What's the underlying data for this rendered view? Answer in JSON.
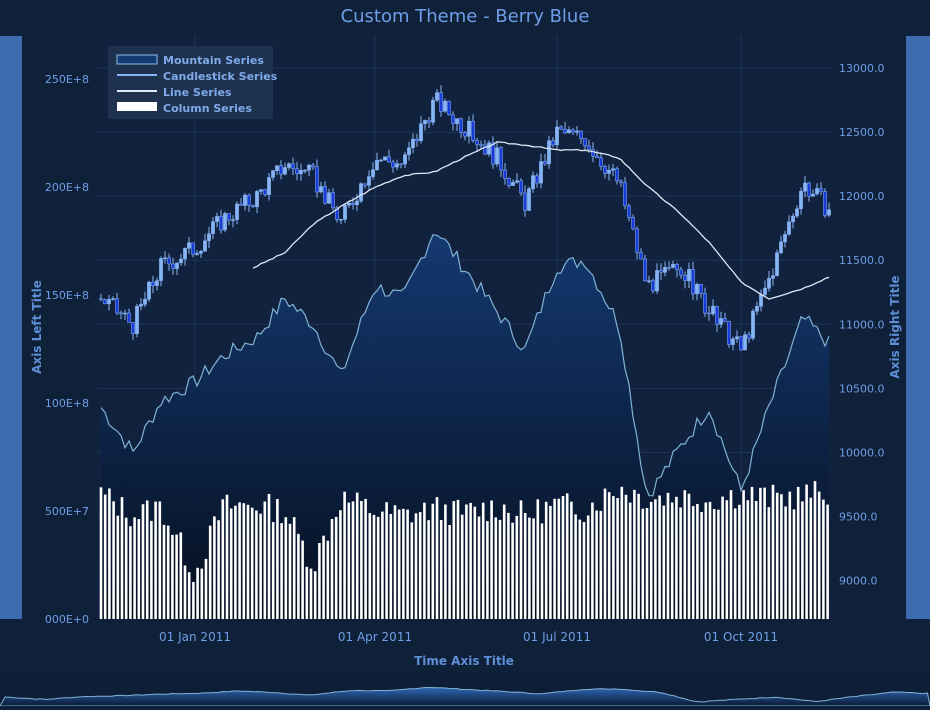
{
  "title": "Custom Theme - Berry Blue",
  "colors": {
    "background": "#0f2039",
    "plot_background": "#10223d",
    "accent": "#6f9fe8",
    "candle_fill": "#1a3bd6",
    "candle_stroke": "#87b4f5",
    "mountain_top": "#143a73",
    "mountain_line": "#7fb3d4",
    "line_series": "#dfe8f5",
    "column": "#ffffff",
    "side_bar": "#3f6bb0"
  },
  "chart_data": {
    "type": "mixed",
    "title": "Custom Theme - Berry Blue",
    "xlabel": "Time Axis Title",
    "ylabel_left": "Axis Left Title",
    "ylabel_right": "Axis Right Title",
    "x_ticks": [
      "01 Jan 2011",
      "01 Apr 2011",
      "01 Jul 2011",
      "01 Oct 2011"
    ],
    "x_range": [
      "2010-11-13",
      "2011-11-15"
    ],
    "y_left_ticks": [
      "000E+0",
      "500E+7",
      "100E+8",
      "150E+8",
      "200E+8",
      "250E+8"
    ],
    "y_left_range": [
      0,
      27000000000
    ],
    "y_right_ticks": [
      "9000.0",
      "9500.0",
      "10000.0",
      "10500.0",
      "11000.0",
      "11500.0",
      "12000.0",
      "12500.0",
      "13000.0"
    ],
    "y_right_range": [
      8700,
      13250
    ],
    "grid": true,
    "legend_position": "top-left",
    "legend": [
      "Mountain Series",
      "Candlestick Series",
      "Line Series",
      "Column Series"
    ],
    "candlestick_close": [
      {
        "date": "2010-11-15",
        "value": 11200
      },
      {
        "date": "2010-12-01",
        "value": 11000
      },
      {
        "date": "2010-12-15",
        "value": 11450
      },
      {
        "date": "2011-01-01",
        "value": 11600
      },
      {
        "date": "2011-01-15",
        "value": 11820
      },
      {
        "date": "2011-02-01",
        "value": 12000
      },
      {
        "date": "2011-02-15",
        "value": 12250
      },
      {
        "date": "2011-03-01",
        "value": 12150
      },
      {
        "date": "2011-03-15",
        "value": 11800
      },
      {
        "date": "2011-04-01",
        "value": 12300
      },
      {
        "date": "2011-04-15",
        "value": 12250
      },
      {
        "date": "2011-05-01",
        "value": 12750
      },
      {
        "date": "2011-05-15",
        "value": 12550
      },
      {
        "date": "2011-06-01",
        "value": 12300
      },
      {
        "date": "2011-06-15",
        "value": 11950
      },
      {
        "date": "2011-07-01",
        "value": 12500
      },
      {
        "date": "2011-07-15",
        "value": 12450
      },
      {
        "date": "2011-08-01",
        "value": 12100
      },
      {
        "date": "2011-08-15",
        "value": 11300
      },
      {
        "date": "2011-09-01",
        "value": 11450
      },
      {
        "date": "2011-09-15",
        "value": 11100
      },
      {
        "date": "2011-10-01",
        "value": 10800
      },
      {
        "date": "2011-10-15",
        "value": 11350
      },
      {
        "date": "2011-11-01",
        "value": 12100
      },
      {
        "date": "2011-11-14",
        "value": 11900
      }
    ],
    "line_series": [
      {
        "date": "2011-01-30",
        "value": 11440
      },
      {
        "date": "2011-02-15",
        "value": 11560
      },
      {
        "date": "2011-03-01",
        "value": 11780
      },
      {
        "date": "2011-03-15",
        "value": 11920
      },
      {
        "date": "2011-04-01",
        "value": 12070
      },
      {
        "date": "2011-04-15",
        "value": 12160
      },
      {
        "date": "2011-05-01",
        "value": 12190
      },
      {
        "date": "2011-05-15",
        "value": 12300
      },
      {
        "date": "2011-06-01",
        "value": 12420
      },
      {
        "date": "2011-06-15",
        "value": 12400
      },
      {
        "date": "2011-07-01",
        "value": 12360
      },
      {
        "date": "2011-07-15",
        "value": 12360
      },
      {
        "date": "2011-08-01",
        "value": 12300
      },
      {
        "date": "2011-08-15",
        "value": 12080
      },
      {
        "date": "2011-09-01",
        "value": 11860
      },
      {
        "date": "2011-09-15",
        "value": 11640
      },
      {
        "date": "2011-10-01",
        "value": 11330
      },
      {
        "date": "2011-10-15",
        "value": 11200
      },
      {
        "date": "2011-11-01",
        "value": 11280
      },
      {
        "date": "2011-11-14",
        "value": 11370
      }
    ],
    "mountain_series": [
      {
        "date": "2010-11-15",
        "value": 10350
      },
      {
        "date": "2010-12-01",
        "value": 10000
      },
      {
        "date": "2010-12-15",
        "value": 10400
      },
      {
        "date": "2011-01-01",
        "value": 10550
      },
      {
        "date": "2011-01-15",
        "value": 10750
      },
      {
        "date": "2011-02-01",
        "value": 10900
      },
      {
        "date": "2011-02-15",
        "value": 11200
      },
      {
        "date": "2011-03-01",
        "value": 11000
      },
      {
        "date": "2011-03-15",
        "value": 10600
      },
      {
        "date": "2011-04-01",
        "value": 11300
      },
      {
        "date": "2011-04-15",
        "value": 11200
      },
      {
        "date": "2011-05-01",
        "value": 11750
      },
      {
        "date": "2011-05-15",
        "value": 11450
      },
      {
        "date": "2011-06-01",
        "value": 11100
      },
      {
        "date": "2011-06-15",
        "value": 10800
      },
      {
        "date": "2011-07-01",
        "value": 11450
      },
      {
        "date": "2011-07-15",
        "value": 11500
      },
      {
        "date": "2011-08-01",
        "value": 11000
      },
      {
        "date": "2011-08-15",
        "value": 9650
      },
      {
        "date": "2011-09-01",
        "value": 10050
      },
      {
        "date": "2011-09-15",
        "value": 10350
      },
      {
        "date": "2011-10-01",
        "value": 9700
      },
      {
        "date": "2011-10-15",
        "value": 10350
      },
      {
        "date": "2011-11-01",
        "value": 11050
      },
      {
        "date": "2011-11-14",
        "value": 10850
      }
    ],
    "column_series": [
      {
        "date": "2010-11-15",
        "value": 5800000000
      },
      {
        "date": "2010-12-01",
        "value": 4800000000
      },
      {
        "date": "2010-12-15",
        "value": 5200000000
      },
      {
        "date": "2011-01-01",
        "value": 2100000000
      },
      {
        "date": "2011-01-15",
        "value": 5200000000
      },
      {
        "date": "2011-02-01",
        "value": 5300000000
      },
      {
        "date": "2011-02-15",
        "value": 5000000000
      },
      {
        "date": "2011-03-01",
        "value": 2500000000
      },
      {
        "date": "2011-03-15",
        "value": 5600000000
      },
      {
        "date": "2011-04-01",
        "value": 5000000000
      },
      {
        "date": "2011-04-15",
        "value": 4800000000
      },
      {
        "date": "2011-05-01",
        "value": 5100000000
      },
      {
        "date": "2011-05-15",
        "value": 4900000000
      },
      {
        "date": "2011-06-01",
        "value": 5200000000
      },
      {
        "date": "2011-06-15",
        "value": 4800000000
      },
      {
        "date": "2011-07-01",
        "value": 5300000000
      },
      {
        "date": "2011-07-15",
        "value": 5100000000
      },
      {
        "date": "2011-08-01",
        "value": 6100000000
      },
      {
        "date": "2011-08-15",
        "value": 5600000000
      },
      {
        "date": "2011-09-01",
        "value": 5700000000
      },
      {
        "date": "2011-09-15",
        "value": 5500000000
      },
      {
        "date": "2011-10-01",
        "value": 5800000000
      },
      {
        "date": "2011-10-15",
        "value": 5600000000
      },
      {
        "date": "2011-11-01",
        "value": 5700000000
      },
      {
        "date": "2011-11-14",
        "value": 5900000000
      }
    ]
  }
}
